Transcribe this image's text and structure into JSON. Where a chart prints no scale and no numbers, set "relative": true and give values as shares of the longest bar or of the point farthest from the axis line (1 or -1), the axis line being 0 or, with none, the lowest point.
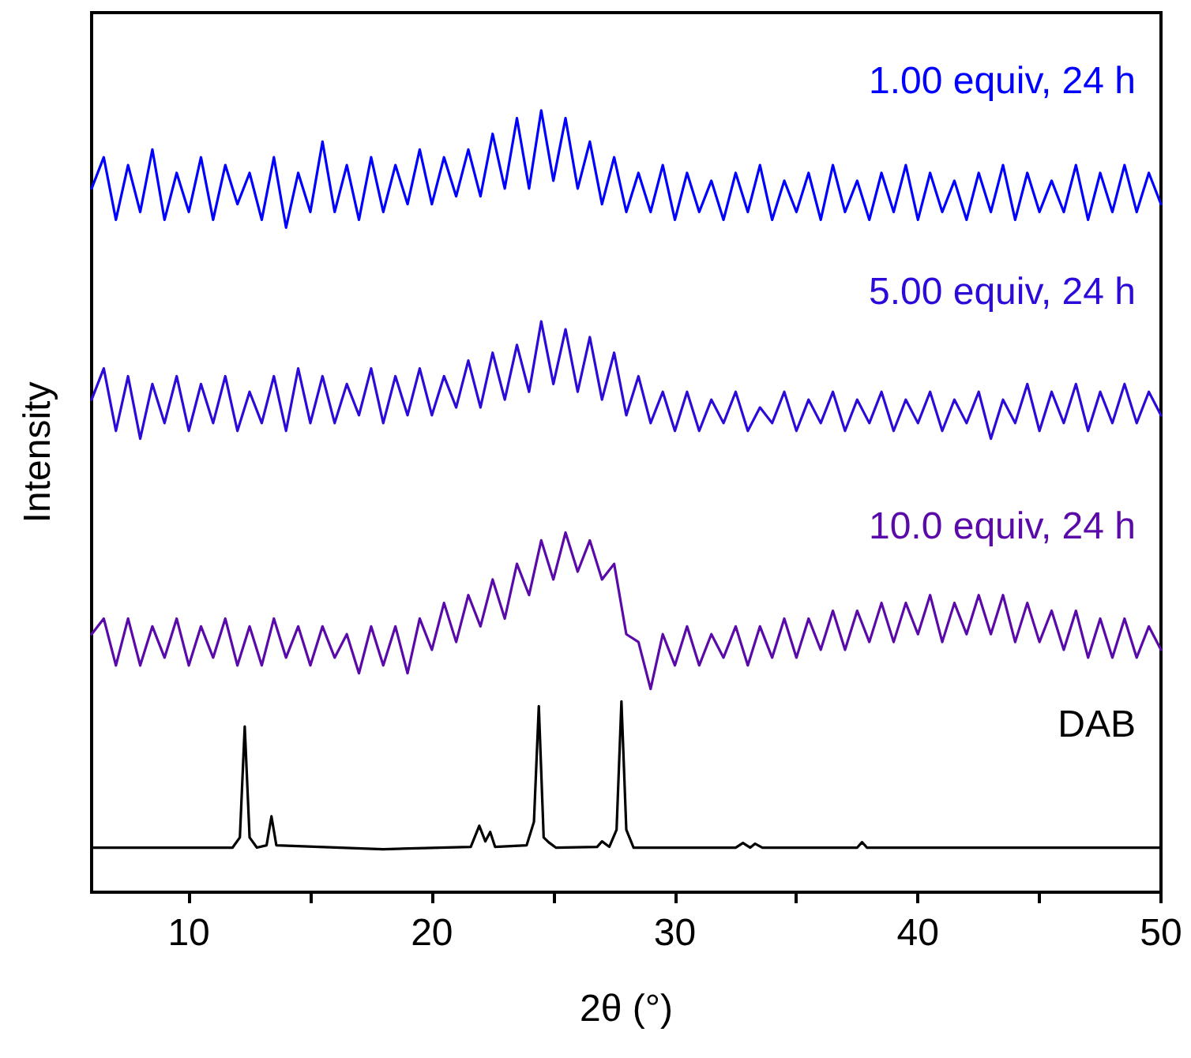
{
  "chart_data": {
    "type": "line",
    "relative": true,
    "marker": "none",
    "line_style": "solid",
    "xlabel": "2θ (°)",
    "ylabel": "Intensity",
    "xlim": [
      6,
      50
    ],
    "xticks": [
      10,
      {
        "value": 15,
        "label": null
      },
      20,
      {
        "value": 25,
        "label": null
      },
      30,
      {
        "value": 35,
        "label": null
      },
      40,
      {
        "value": 45,
        "label": null
      },
      50
    ],
    "x": [
      6,
      6.5,
      7,
      7.5,
      8,
      8.5,
      9,
      9.5,
      10,
      10.5,
      11,
      11.5,
      12,
      12.5,
      13,
      13.5,
      14,
      14.5,
      15,
      15.5,
      16,
      16.5,
      17,
      17.5,
      18,
      18.5,
      19,
      19.5,
      20,
      20.5,
      21,
      21.5,
      22,
      22.5,
      23,
      23.5,
      24,
      24.5,
      25,
      25.5,
      26,
      26.5,
      27,
      27.5,
      28,
      28.5,
      29,
      29.5,
      30,
      30.5,
      31,
      31.5,
      32,
      32.5,
      33,
      33.5,
      34,
      34.5,
      35,
      35.5,
      36,
      36.5,
      37,
      37.5,
      38,
      38.5,
      39,
      39.5,
      40,
      40.5,
      41,
      41.5,
      42,
      42.5,
      43,
      43.5,
      44,
      44.5,
      45,
      45.5,
      46,
      46.5,
      47,
      47.5,
      48,
      48.5,
      49,
      49.5,
      50
    ],
    "series": [
      {
        "name": "1.00 equiv, 24 h",
        "color": "#0000ff",
        "values": [
          0.9,
          0.94,
          0.86,
          0.93,
          0.87,
          0.95,
          0.86,
          0.92,
          0.87,
          0.94,
          0.86,
          0.93,
          0.88,
          0.92,
          0.86,
          0.94,
          0.85,
          0.92,
          0.87,
          0.96,
          0.87,
          0.93,
          0.86,
          0.94,
          0.87,
          0.93,
          0.88,
          0.95,
          0.88,
          0.94,
          0.89,
          0.95,
          0.89,
          0.97,
          0.9,
          0.99,
          0.9,
          1.0,
          0.91,
          0.99,
          0.9,
          0.96,
          0.88,
          0.94,
          0.87,
          0.92,
          0.87,
          0.93,
          0.86,
          0.92,
          0.87,
          0.91,
          0.86,
          0.92,
          0.87,
          0.93,
          0.86,
          0.91,
          0.87,
          0.92,
          0.86,
          0.93,
          0.87,
          0.91,
          0.86,
          0.92,
          0.87,
          0.93,
          0.86,
          0.92,
          0.87,
          0.91,
          0.86,
          0.92,
          0.87,
          0.93,
          0.86,
          0.92,
          0.87,
          0.91,
          0.87,
          0.93,
          0.86,
          0.92,
          0.87,
          0.93,
          0.87,
          0.92,
          0.88
        ]
      },
      {
        "name": "5.00 equiv, 24 h",
        "color": "#2e0ad8",
        "values": [
          0.63,
          0.67,
          0.59,
          0.66,
          0.58,
          0.65,
          0.6,
          0.66,
          0.59,
          0.65,
          0.6,
          0.66,
          0.59,
          0.64,
          0.6,
          0.66,
          0.59,
          0.67,
          0.6,
          0.66,
          0.6,
          0.65,
          0.61,
          0.67,
          0.6,
          0.66,
          0.61,
          0.67,
          0.61,
          0.66,
          0.62,
          0.68,
          0.62,
          0.69,
          0.63,
          0.7,
          0.64,
          0.73,
          0.65,
          0.72,
          0.64,
          0.71,
          0.63,
          0.69,
          0.61,
          0.66,
          0.6,
          0.64,
          0.59,
          0.64,
          0.59,
          0.63,
          0.6,
          0.64,
          0.59,
          0.62,
          0.6,
          0.64,
          0.59,
          0.63,
          0.6,
          0.64,
          0.59,
          0.63,
          0.6,
          0.64,
          0.59,
          0.63,
          0.6,
          0.64,
          0.59,
          0.63,
          0.6,
          0.64,
          0.58,
          0.63,
          0.6,
          0.65,
          0.59,
          0.64,
          0.6,
          0.65,
          0.59,
          0.64,
          0.6,
          0.65,
          0.6,
          0.64,
          0.61
        ]
      },
      {
        "name": "10.0 equiv, 24 h",
        "color": "#5a0aa8",
        "values": [
          0.33,
          0.35,
          0.29,
          0.35,
          0.29,
          0.34,
          0.3,
          0.35,
          0.29,
          0.34,
          0.3,
          0.35,
          0.29,
          0.34,
          0.29,
          0.35,
          0.3,
          0.34,
          0.29,
          0.34,
          0.3,
          0.33,
          0.28,
          0.34,
          0.29,
          0.34,
          0.28,
          0.35,
          0.31,
          0.37,
          0.32,
          0.38,
          0.34,
          0.4,
          0.35,
          0.42,
          0.38,
          0.45,
          0.4,
          0.46,
          0.41,
          0.45,
          0.4,
          0.42,
          0.33,
          0.32,
          0.26,
          0.33,
          0.29,
          0.34,
          0.29,
          0.33,
          0.3,
          0.34,
          0.29,
          0.34,
          0.3,
          0.35,
          0.3,
          0.35,
          0.31,
          0.36,
          0.31,
          0.36,
          0.32,
          0.37,
          0.32,
          0.37,
          0.33,
          0.38,
          0.32,
          0.37,
          0.33,
          0.38,
          0.33,
          0.38,
          0.32,
          0.37,
          0.32,
          0.36,
          0.31,
          0.36,
          0.3,
          0.35,
          0.3,
          0.35,
          0.3,
          0.34,
          0.31
        ]
      },
      {
        "name": "DAB",
        "color": "#000000",
        "x": [
          6,
          11.8,
          12.1,
          12.3,
          12.5,
          12.8,
          13.2,
          13.4,
          13.6,
          18,
          21.6,
          21.95,
          22.2,
          22.4,
          22.6,
          23.9,
          24.2,
          24.4,
          24.6,
          24.8,
          25.1,
          26.8,
          27,
          27.3,
          27.6,
          27.8,
          28,
          28.3,
          32.5,
          32.8,
          33.1,
          33.3,
          33.6,
          37.5,
          37.7,
          37.9,
          50
        ],
        "values": [
          0.057,
          0.057,
          0.07,
          0.212,
          0.07,
          0.057,
          0.06,
          0.097,
          0.06,
          0.055,
          0.058,
          0.085,
          0.065,
          0.077,
          0.058,
          0.06,
          0.09,
          0.238,
          0.07,
          0.064,
          0.057,
          0.058,
          0.065,
          0.058,
          0.08,
          0.244,
          0.08,
          0.057,
          0.057,
          0.063,
          0.057,
          0.062,
          0.057,
          0.057,
          0.064,
          0.057,
          0.057
        ]
      }
    ]
  }
}
